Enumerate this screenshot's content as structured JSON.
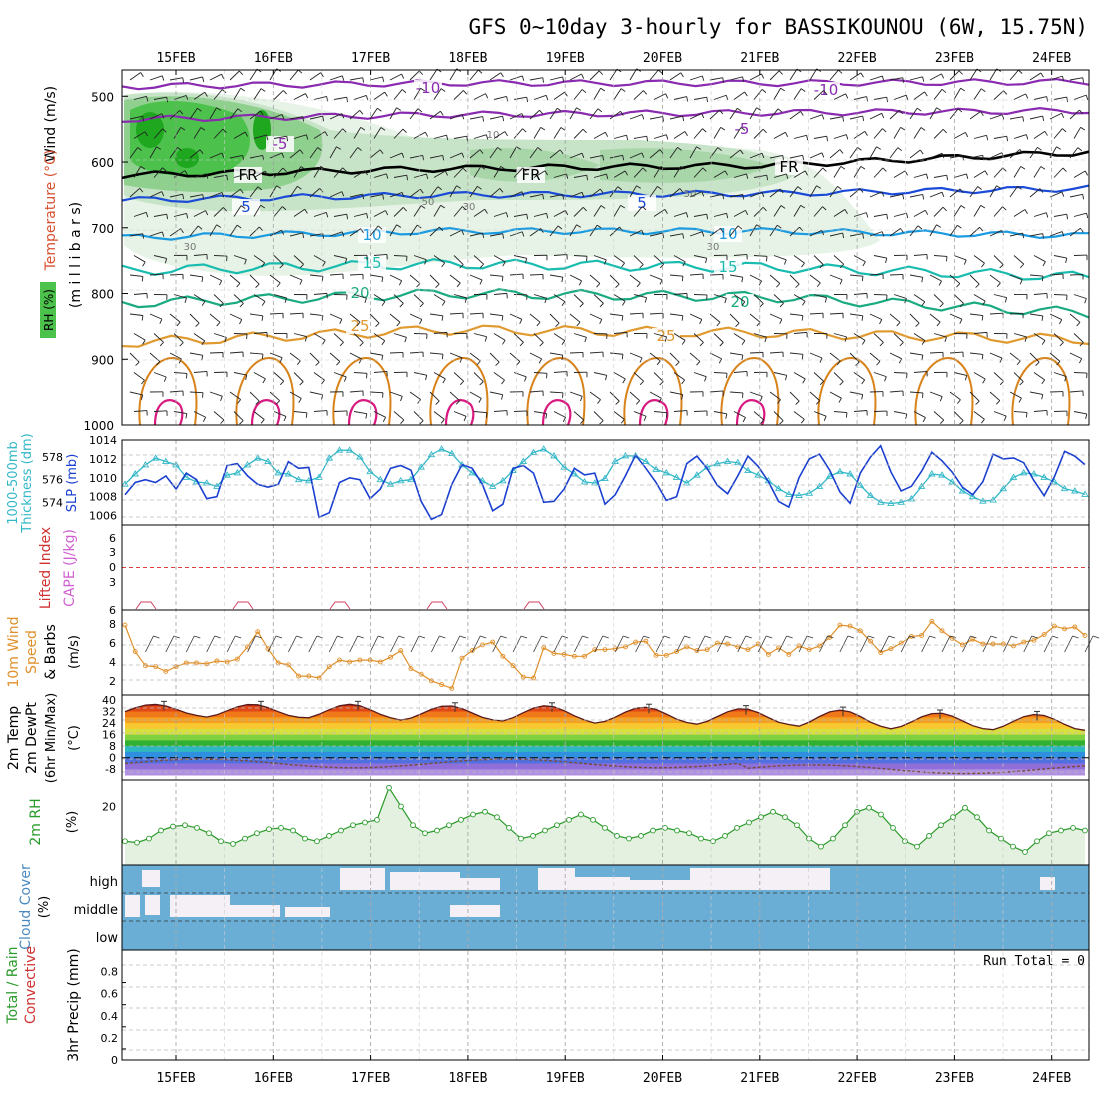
{
  "title": "GFS 0~10day 3-hourly for BASSIKOUNOU (6W, 15.75N)",
  "dates": [
    "15FEB",
    "16FEB",
    "17FEB",
    "18FEB",
    "19FEB",
    "20FEB",
    "21FEB",
    "22FEB",
    "23FEB",
    "24FEB"
  ],
  "labels": {
    "wind": "Wind (m/s)",
    "temperature": "Temperature (°C)",
    "rh_box": "RH (%)",
    "millibars": "(m i l l i b a r s)",
    "thick_1": "1000-500mb",
    "thick_2": "Thickness (dm)",
    "slp": "SLP (mb)",
    "li": "Lifted Index",
    "cape": "CAPE (J/kg)",
    "w10_1": "10m Wind",
    "w10_2": "Speed",
    "w10_3": "& Barbs",
    "w10_units": "(m/s)",
    "t2_1": "2m Temp",
    "t2_2": "2m DewPt",
    "t2_3": "(6hr Min/Max)",
    "t2_units": "(°C)",
    "rh2": "2m RH",
    "rh2_units": "(%)",
    "cloud": "Cloud Cover",
    "cloud_units": "(%)",
    "precip_1": "Total / Rain",
    "precip_2": "Convective",
    "precip_3": "3hr Precip (mm)",
    "run_total": "Run Total = 0",
    "cloud_high": "high",
    "cloud_mid": "middle",
    "cloud_low": "low"
  },
  "colors": {
    "slp": "#1a3fd0",
    "thickness": "#33b8c8",
    "wind10": "#e0902a",
    "temp_max": "#d02010",
    "cape": "#d060d0",
    "rh": "#2a9a2a",
    "cloud": "#6aaed6",
    "cloud_gap": "#f4f0f6",
    "grid": "#aaaaaa"
  },
  "chart_data": [
    {
      "panel": "upper-air",
      "type": "contour",
      "y_axis": {
        "label": "millibars",
        "ticks": [
          500,
          600,
          700,
          800,
          900,
          1000
        ]
      },
      "contour_labels": [
        "-10",
        "-5",
        "FR",
        "5",
        "10",
        "15",
        "20",
        "25",
        "10",
        "30",
        "50"
      ],
      "isotherms": [
        {
          "label": "-10",
          "pressure": [
            485,
            480,
            480,
            478
          ]
        },
        {
          "label": "-5",
          "pressure": [
            535,
            528,
            525,
            522
          ]
        },
        {
          "label": "FR",
          "pressure": [
            620,
            610,
            605,
            585
          ]
        },
        {
          "label": "5",
          "pressure": [
            658,
            650,
            648,
            640
          ]
        },
        {
          "label": "10",
          "pressure": [
            715,
            705,
            705,
            712
          ]
        },
        {
          "label": "15",
          "pressure": [
            765,
            755,
            760,
            775
          ]
        },
        {
          "label": "20",
          "pressure": [
            815,
            800,
            805,
            830
          ]
        },
        {
          "label": "25",
          "pressure": [
            875,
            855,
            860,
            870
          ]
        }
      ]
    },
    {
      "panel": "thickness-slp",
      "type": "line",
      "series": [
        {
          "name": "SLP (mb)",
          "axis": "right",
          "ticks": [
            1006,
            1008,
            1010,
            1012,
            1014
          ],
          "values": [
            1008.2,
            1009.5,
            1009.8,
            1009.5,
            1010.2,
            1008.8,
            1010.5,
            1009.8,
            1007.8,
            1008,
            1011.3,
            1011.5,
            1010.2,
            1009.3,
            1009,
            1009.3,
            1011.7,
            1011,
            1011.1,
            1005.8,
            1006.3,
            1009.5,
            1010,
            1009.8,
            1007.8,
            1008.8,
            1011,
            1011.3,
            1010.8,
            1007.5,
            1005.6,
            1006.1,
            1009.3,
            1011.4,
            1011,
            1009.3,
            1006.5,
            1007.2,
            1011,
            1011.3,
            1010.5,
            1007.4,
            1007.5,
            1008.8,
            1011,
            1010.3,
            1010.5,
            1007.2,
            1008.2,
            1010.2,
            1012.4,
            1011,
            1009.5,
            1007.6,
            1008,
            1011.5,
            1012.3,
            1011,
            1009.2,
            1008.3,
            1010.2,
            1012.3,
            1011.2,
            1009.6,
            1007.5,
            1006.9,
            1010,
            1012,
            1012.5,
            1010.8,
            1008.5,
            1007.3,
            1010.5,
            1012.2,
            1013.4,
            1010.6,
            1008.6,
            1009.1,
            1010.7,
            1012.7,
            1011.8,
            1010.6,
            1009,
            1008.2,
            1009.6,
            1012.5,
            1012,
            1012.1,
            1011.6,
            1009.7,
            1008.1,
            1010.1,
            1012.8,
            1012.3,
            1011.4
          ]
        },
        {
          "name": "1000-500mb Thickness (dm)",
          "axis": "left",
          "ticks": [
            574,
            576,
            578
          ],
          "values": [
            575.6,
            576.5,
            577.3,
            577.9,
            577.6,
            577.3,
            576.2,
            575.8,
            575.7,
            575.4,
            576.4,
            576.6,
            577.3,
            577.9,
            577.6,
            576.6,
            576.5,
            576.0,
            575.9,
            576.2,
            577.9,
            578.6,
            578.6,
            578.0,
            576.7,
            576.0,
            575.6,
            575.9,
            576.0,
            577.1,
            578.2,
            578.7,
            578.3,
            577.3,
            576.6,
            575.9,
            575.4,
            575.9,
            576.8,
            577.6,
            578.4,
            578.7,
            578.1,
            577.1,
            576.5,
            575.8,
            575.7,
            576.1,
            577.6,
            578.1,
            578.1,
            577.6,
            576.9,
            576.6,
            576.2,
            575.7,
            576.4,
            577.1,
            577.4,
            577.6,
            577.5,
            576.8,
            576.4,
            575.9,
            575.2,
            574.7,
            574.6,
            574.8,
            575.4,
            576.3,
            576.7,
            576.5,
            575.5,
            574.6,
            574.0,
            573.9,
            574.0,
            574.3,
            575.4,
            576.5,
            576.4,
            575.8,
            575.0,
            574.5,
            574.1,
            574.2,
            575.2,
            576.2,
            576.6,
            576.5,
            576.2,
            575.8,
            575.2,
            575.0,
            574.7
          ]
        }
      ]
    },
    {
      "panel": "lifted-index-cape",
      "type": "line",
      "y_axis": {
        "ticks": [
          -6,
          -3,
          0,
          3,
          6
        ]
      },
      "series": [
        {
          "name": "CAPE (J/kg)",
          "values": [
            0,
            0,
            0,
            0,
            0
          ]
        }
      ]
    },
    {
      "panel": "10m-wind",
      "type": "line",
      "y_axis": {
        "label": "m/s",
        "ticks": [
          2,
          4,
          6,
          8
        ]
      },
      "series": [
        {
          "name": "10m Wind Speed",
          "values": [
            7.9,
            5.1,
            3.6,
            3.5,
            3.0,
            3.5,
            3.9,
            3.9,
            3.8,
            4.1,
            4.0,
            4.3,
            5.6,
            7.2,
            5.4,
            3.9,
            3.7,
            2.5,
            2.5,
            2.3,
            3.5,
            4.2,
            4.0,
            4.2,
            4.2,
            4.0,
            4.5,
            5.2,
            3.3,
            2.7,
            2.0,
            1.6,
            1.2,
            4.4,
            5.2,
            5.8,
            6.1,
            4.6,
            3.6,
            2.4,
            2.3,
            5.5,
            4.9,
            4.8,
            4.6,
            4.6,
            5.3,
            5.3,
            5.4,
            5.6,
            6.1,
            6.2,
            4.7,
            4.7,
            5.1,
            5.6,
            5.2,
            5.3,
            6.0,
            5.9,
            5.6,
            5.3,
            5.9,
            4.8,
            5.5,
            4.8,
            5.7,
            5.3,
            5.7,
            6.6,
            7.9,
            7.8,
            7.3,
            6.2,
            5.0,
            5.4,
            6.0,
            6.7,
            6.8,
            8.3,
            7.3,
            6.5,
            5.8,
            6.4,
            5.9,
            5.9,
            5.9,
            5.7,
            6.1,
            6.3,
            6.9,
            7.8,
            7.5,
            7.7,
            6.8
          ]
        }
      ]
    },
    {
      "panel": "2m-temp",
      "type": "area",
      "y_axis": {
        "label": "°C",
        "ticks": [
          40,
          32,
          24,
          16,
          8,
          0,
          -8
        ]
      },
      "series": [
        {
          "name": "2m Temp",
          "daily_max": [
            37,
            37,
            37,
            36,
            36,
            35,
            34,
            33,
            31,
            30
          ],
          "daily_min": [
            29,
            28,
            27,
            26,
            25,
            24,
            23,
            21,
            20,
            19
          ]
        },
        {
          "name": "2m DewPt",
          "range": [
            -12,
            2
          ]
        }
      ]
    },
    {
      "panel": "2m-rh",
      "type": "line",
      "y_axis": {
        "label": "%",
        "ticks": [
          20
        ]
      },
      "series": [
        {
          "name": "2m RH",
          "values": [
            7,
            6.5,
            8,
            11,
            12.5,
            13,
            12,
            10,
            7,
            6,
            8,
            10,
            11.5,
            12,
            11,
            8,
            7,
            9,
            11,
            13,
            14,
            15,
            27,
            20,
            13,
            10,
            11,
            13,
            15,
            17,
            18,
            16,
            12,
            8,
            9,
            11,
            13,
            15,
            17,
            15,
            12,
            9,
            8,
            9,
            11,
            12,
            11,
            10,
            8,
            7,
            9,
            12,
            14,
            16,
            18,
            16,
            13,
            8,
            5,
            8,
            13,
            18,
            19.5,
            17,
            12,
            7,
            5,
            9,
            13,
            16,
            19.5,
            16,
            11,
            8,
            5,
            3,
            7,
            10,
            11,
            12,
            11
          ]
        }
      ]
    },
    {
      "panel": "cloud-cover",
      "type": "heatmap",
      "y_axis": {
        "label": "%",
        "categories": [
          "high",
          "middle",
          "low"
        ]
      }
    },
    {
      "panel": "precip",
      "type": "bar",
      "y_axis": {
        "label": "mm",
        "ticks": [
          0,
          0.2,
          0.4,
          0.6,
          0.8
        ]
      },
      "values": [
        0,
        0,
        0,
        0,
        0
      ]
    }
  ]
}
